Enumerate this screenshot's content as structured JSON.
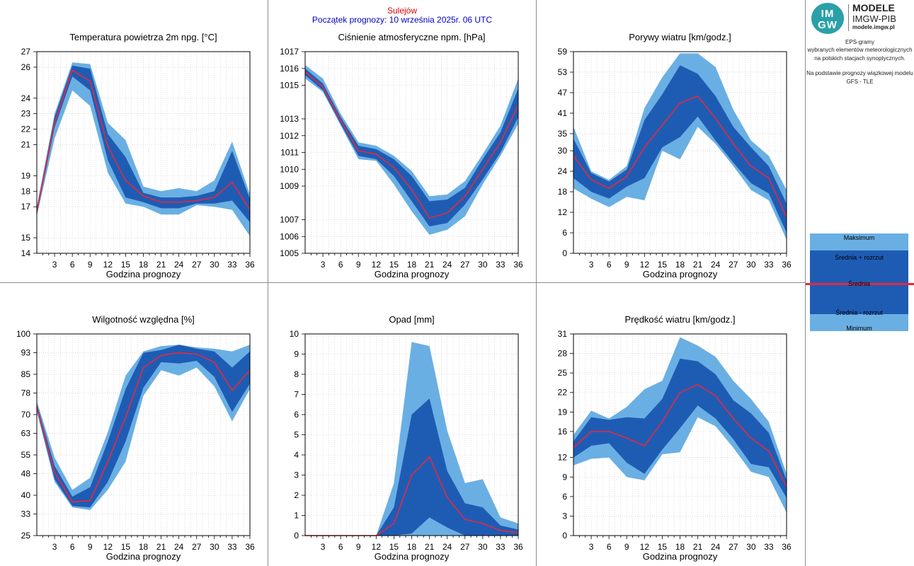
{
  "header": {
    "station": "Sulejów",
    "forecast_start": "Początek prognozy: 10 września 2025r. 06 UTC"
  },
  "branding": {
    "logo_top": "IM",
    "logo_bottom": "GW",
    "title": "MODELE",
    "subtitle": "IMGW-PIB",
    "url": "modele.imgw.pl"
  },
  "description": {
    "line1": "EPS-gramy",
    "line2": "wybranych elementów meteorologicznych",
    "line3": "na polskich stacjach  synoptycznych.",
    "line4": "Na podstawie prognozy wiązkowej modelu",
    "line5": "GFS - TLE"
  },
  "legend": {
    "max": "Maksimum",
    "mean_plus": "Średnia + rozrzut",
    "mean": "Średnia",
    "mean_minus": "Średnia - rozrzut",
    "min": "Minimum"
  },
  "colors": {
    "outer_band": "#6aafe3",
    "inner_band": "#1e5cb4",
    "mean_line": "#e8283c",
    "station_text": "#e00000",
    "start_text": "#0000c8"
  },
  "chart_data": [
    {
      "type": "area",
      "title": "Temperatura powietrza 2m npg. [°C]",
      "xlabel": "Godzina prognozy",
      "x": [
        0,
        3,
        6,
        9,
        12,
        15,
        18,
        21,
        24,
        27,
        30,
        33,
        36
      ],
      "xticks": [
        "3",
        "6",
        "9",
        "12",
        "15",
        "18",
        "21",
        "24",
        "27",
        "30",
        "33",
        "36"
      ],
      "ylim": [
        14,
        27
      ],
      "yticks": [
        "14",
        "15",
        "17",
        "18",
        "19",
        "21",
        "22",
        "23",
        "24",
        "26",
        "27"
      ],
      "series": [
        {
          "name": "Maksimum",
          "values": [
            17.0,
            23.0,
            26.3,
            26.2,
            22.4,
            21.3,
            18.3,
            18.0,
            18.2,
            18.0,
            18.7,
            21.2,
            17.8
          ]
        },
        {
          "name": "Średnia + rozrzut",
          "values": [
            16.9,
            22.8,
            26.1,
            25.9,
            21.7,
            20.2,
            17.9,
            17.6,
            17.6,
            17.7,
            18.0,
            20.6,
            17.5
          ]
        },
        {
          "name": "Średnia",
          "values": [
            16.7,
            22.4,
            25.8,
            25.1,
            20.9,
            18.7,
            17.7,
            17.3,
            17.3,
            17.4,
            17.6,
            18.6,
            16.8
          ]
        },
        {
          "name": "Średnia - rozrzut",
          "values": [
            16.5,
            22.1,
            25.4,
            24.5,
            20.0,
            17.6,
            17.3,
            16.9,
            16.9,
            17.2,
            17.2,
            17.4,
            16.0
          ]
        },
        {
          "name": "Minimum",
          "values": [
            16.4,
            21.4,
            24.5,
            23.5,
            19.2,
            17.2,
            17.0,
            16.5,
            16.5,
            17.1,
            17.0,
            16.8,
            15.1
          ]
        }
      ]
    },
    {
      "type": "area",
      "title": "Ciśnienie atmosferyczne npm. [hPa]",
      "xlabel": "Godzina prognozy",
      "x": [
        0,
        3,
        6,
        9,
        12,
        15,
        18,
        21,
        24,
        27,
        30,
        33,
        36
      ],
      "xticks": [
        "3",
        "6",
        "9",
        "12",
        "15",
        "18",
        "21",
        "24",
        "27",
        "30",
        "33",
        "36"
      ],
      "ylim": [
        1005,
        1017
      ],
      "yticks": [
        "1005",
        "1006",
        "1007",
        "1009",
        "1010",
        "1011",
        "1012",
        "1013",
        "1015",
        "1016",
        "1017"
      ],
      "series": [
        {
          "name": "Maksimum",
          "values": [
            1016.2,
            1015.4,
            1013.3,
            1011.6,
            1011.4,
            1010.8,
            1009.9,
            1008.4,
            1008.5,
            1009.3,
            1010.9,
            1012.6,
            1015.4
          ]
        },
        {
          "name": "Średnia + rozrzut",
          "values": [
            1016.0,
            1015.1,
            1013.1,
            1011.4,
            1011.2,
            1010.6,
            1009.6,
            1008.1,
            1008.2,
            1008.9,
            1010.6,
            1012.2,
            1014.8
          ]
        },
        {
          "name": "Średnia",
          "values": [
            1015.8,
            1014.9,
            1012.9,
            1011.1,
            1010.9,
            1010.1,
            1008.8,
            1007.1,
            1007.4,
            1008.4,
            1010.0,
            1011.6,
            1013.8
          ]
        },
        {
          "name": "Średnia - rozrzut",
          "values": [
            1015.6,
            1014.7,
            1012.7,
            1010.8,
            1010.6,
            1009.6,
            1008.1,
            1006.6,
            1006.8,
            1007.9,
            1009.4,
            1011.0,
            1013.1
          ]
        },
        {
          "name": "Minimum",
          "values": [
            1015.4,
            1014.6,
            1012.6,
            1010.6,
            1010.5,
            1009.1,
            1007.5,
            1006.1,
            1006.4,
            1007.2,
            1009.1,
            1010.8,
            1012.7
          ]
        }
      ]
    },
    {
      "type": "area",
      "title": "Porywy wiatru [km/godz.]",
      "xlabel": "Godzina prognozy",
      "x": [
        0,
        3,
        6,
        9,
        12,
        15,
        18,
        21,
        24,
        27,
        30,
        33,
        36
      ],
      "xticks": [
        "3",
        "6",
        "9",
        "12",
        "15",
        "18",
        "21",
        "24",
        "27",
        "30",
        "33",
        "36"
      ],
      "ylim": [
        0,
        59
      ],
      "yticks": [
        "0",
        "6",
        "12",
        "18",
        "24",
        "30",
        "35",
        "41",
        "47",
        "53",
        "59"
      ],
      "series": [
        {
          "name": "Maksimum",
          "values": [
            37.0,
            24.0,
            21.5,
            25.5,
            42.5,
            51.5,
            58.5,
            58.5,
            54.5,
            42.0,
            33.0,
            28.5,
            18.5
          ]
        },
        {
          "name": "Średnia + rozrzut",
          "values": [
            33.5,
            23.5,
            21.0,
            24.5,
            39.0,
            46.5,
            55.0,
            52.5,
            46.0,
            37.0,
            31.0,
            25.5,
            14.5
          ]
        },
        {
          "name": "Średnia",
          "values": [
            28.5,
            21.5,
            19.0,
            22.5,
            31.0,
            37.5,
            44.0,
            46.0,
            39.5,
            32.0,
            25.5,
            22.0,
            10.5
          ]
        },
        {
          "name": "Średnia - rozrzut",
          "values": [
            22.0,
            18.0,
            16.0,
            19.5,
            22.0,
            31.0,
            34.0,
            40.0,
            33.0,
            26.5,
            20.5,
            17.5,
            6.0
          ]
        },
        {
          "name": "Minimum",
          "values": [
            19.0,
            16.0,
            13.5,
            16.5,
            15.5,
            30.0,
            27.5,
            37.0,
            32.0,
            25.5,
            18.5,
            15.5,
            4.0
          ]
        }
      ]
    },
    {
      "type": "area",
      "title": "Wilgotność względna [%]",
      "xlabel": "Godzina prognozy",
      "x": [
        0,
        3,
        6,
        9,
        12,
        15,
        18,
        21,
        24,
        27,
        30,
        33,
        36
      ],
      "xticks": [
        "3",
        "6",
        "9",
        "12",
        "15",
        "18",
        "21",
        "24",
        "27",
        "30",
        "33",
        "36"
      ],
      "ylim": [
        25,
        100
      ],
      "yticks": [
        "25",
        "33",
        "40",
        "48",
        "55",
        "63",
        "70",
        "78",
        "85",
        "93",
        "100"
      ],
      "series": [
        {
          "name": "Maksimum",
          "values": [
            75.0,
            54.0,
            42.0,
            46.5,
            63.5,
            84.5,
            93.5,
            95.5,
            96.0,
            95.0,
            94.5,
            93.5,
            96.0
          ]
        },
        {
          "name": "Średnia + rozrzut",
          "values": [
            74.0,
            51.0,
            39.5,
            43.0,
            60.0,
            79.5,
            93.0,
            94.0,
            96.0,
            94.5,
            93.5,
            87.5,
            93.5
          ]
        },
        {
          "name": "Średnia",
          "values": [
            73.0,
            48.5,
            37.5,
            38.0,
            52.5,
            69.0,
            87.5,
            92.0,
            93.0,
            92.5,
            89.5,
            79.0,
            86.5
          ]
        },
        {
          "name": "Średnia - rozrzut",
          "values": [
            72.0,
            46.0,
            36.0,
            35.5,
            45.0,
            60.0,
            80.0,
            89.5,
            89.0,
            90.0,
            84.0,
            71.0,
            81.5
          ]
        },
        {
          "name": "Minimum",
          "values": [
            71.0,
            45.0,
            35.5,
            34.5,
            42.0,
            52.5,
            77.0,
            86.5,
            84.5,
            87.5,
            80.5,
            67.5,
            79.5
          ]
        }
      ]
    },
    {
      "type": "area",
      "title": "Opad [mm]",
      "xlabel": "Godzina prognozy",
      "x": [
        0,
        3,
        6,
        9,
        12,
        15,
        18,
        21,
        24,
        27,
        30,
        33,
        36
      ],
      "xticks": [
        "3",
        "6",
        "9",
        "12",
        "15",
        "18",
        "21",
        "24",
        "27",
        "30",
        "33",
        "36"
      ],
      "ylim": [
        0,
        10
      ],
      "yticks": [
        "0",
        "1",
        "2",
        "3",
        "4",
        "5",
        "6",
        "7",
        "8",
        "9",
        "10"
      ],
      "series": [
        {
          "name": "Maksimum",
          "values": [
            0,
            0,
            0,
            0,
            0,
            2.6,
            9.6,
            9.4,
            5.2,
            2.6,
            2.8,
            0.9,
            0.6
          ]
        },
        {
          "name": "Średnia + rozrzut",
          "values": [
            0,
            0,
            0,
            0,
            0,
            1.4,
            6.0,
            6.8,
            3.2,
            1.6,
            1.4,
            0.5,
            0.3
          ]
        },
        {
          "name": "Średnia",
          "values": [
            0,
            0,
            0,
            0,
            0,
            0.6,
            3.0,
            3.9,
            1.9,
            0.8,
            0.6,
            0.25,
            0.15
          ]
        },
        {
          "name": "Średnia - rozrzut",
          "values": [
            0,
            0,
            0,
            0,
            0,
            0,
            0.1,
            0.9,
            0.4,
            0,
            0,
            0,
            0
          ]
        },
        {
          "name": "Minimum",
          "values": [
            0,
            0,
            0,
            0,
            0,
            0,
            0,
            0,
            0,
            0,
            0,
            0,
            0
          ]
        }
      ]
    },
    {
      "type": "area",
      "title": "Prędkość wiatru [km/godz.]",
      "xlabel": "Godzina prognozy",
      "x": [
        0,
        3,
        6,
        9,
        12,
        15,
        18,
        21,
        24,
        27,
        30,
        33,
        36
      ],
      "xticks": [
        "3",
        "6",
        "9",
        "12",
        "15",
        "18",
        "21",
        "24",
        "27",
        "30",
        "33",
        "36"
      ],
      "ylim": [
        0,
        31
      ],
      "yticks": [
        "0",
        "3",
        "6",
        "9",
        "12",
        "16",
        "19",
        "22",
        "25",
        "28",
        "31"
      ],
      "series": [
        {
          "name": "Maksimum",
          "values": [
            15.5,
            19.2,
            18.0,
            19.8,
            22.5,
            23.8,
            30.5,
            29.2,
            27.5,
            23.8,
            21.0,
            17.5,
            9.5
          ]
        },
        {
          "name": "Średnia + rozrzut",
          "values": [
            14.5,
            18.2,
            17.8,
            18.2,
            18.0,
            21.0,
            27.2,
            26.8,
            24.8,
            20.8,
            18.8,
            15.8,
            8.5
          ]
        },
        {
          "name": "Średnia",
          "values": [
            13.5,
            16.0,
            16.0,
            15.0,
            13.8,
            17.5,
            22.0,
            23.2,
            21.5,
            18.0,
            15.0,
            13.0,
            7.5
          ]
        },
        {
          "name": "Średnia - rozrzut",
          "values": [
            12.0,
            13.8,
            14.2,
            11.2,
            9.5,
            13.2,
            16.5,
            20.0,
            18.0,
            14.8,
            11.0,
            10.5,
            5.8
          ]
        },
        {
          "name": "Minimum",
          "values": [
            10.8,
            11.8,
            12.0,
            9.0,
            8.5,
            12.5,
            12.8,
            18.2,
            16.8,
            13.5,
            9.8,
            9.0,
            3.5
          ]
        }
      ]
    }
  ]
}
